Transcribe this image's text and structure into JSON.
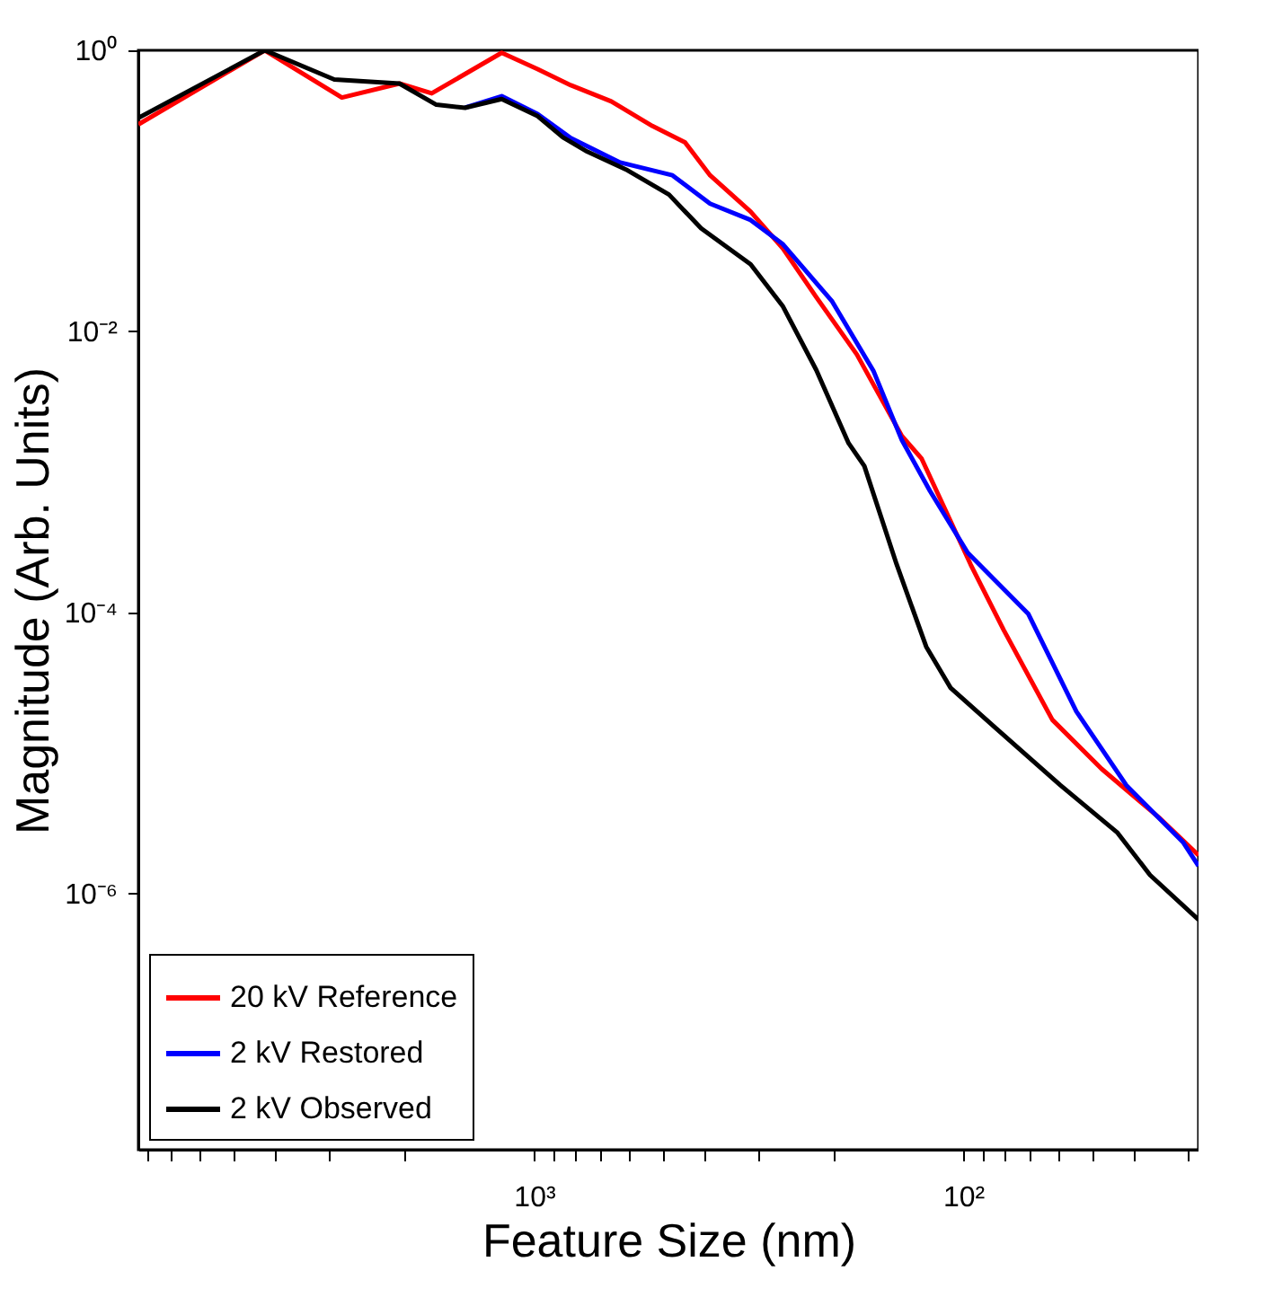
{
  "chart_data": {
    "type": "line",
    "xlabel": "Feature Size (nm)",
    "ylabel": "Magnitude (Arb. Units)",
    "log": "xy",
    "xlim": [
      8360,
      28.3
    ],
    "ylim": [
      1.5e-08,
      1
    ],
    "grid": false,
    "legend": "bottom left",
    "line_style": "solid",
    "xticks": [
      {
        "value": 8000,
        "label": null
      },
      {
        "value": 7000,
        "label": null
      },
      {
        "value": 6000,
        "label": null
      },
      {
        "value": 5000,
        "label": null
      },
      {
        "value": 4000,
        "label": null
      },
      {
        "value": 3000,
        "label": null
      },
      {
        "value": 2000,
        "label": null
      },
      {
        "value": 1000,
        "label": "10³"
      },
      {
        "value": 900,
        "label": null
      },
      {
        "value": 800,
        "label": null
      },
      {
        "value": 700,
        "label": null
      },
      {
        "value": 600,
        "label": null
      },
      {
        "value": 500,
        "label": null
      },
      {
        "value": 400,
        "label": null
      },
      {
        "value": 300,
        "label": null
      },
      {
        "value": 200,
        "label": null
      },
      {
        "value": 100,
        "label": "10²"
      },
      {
        "value": 90,
        "label": null
      },
      {
        "value": 80,
        "label": null
      },
      {
        "value": 70,
        "label": null
      },
      {
        "value": 60,
        "label": null
      },
      {
        "value": 50,
        "label": null
      },
      {
        "value": 40,
        "label": null
      },
      {
        "value": 30,
        "label": null
      }
    ],
    "yticks": [
      {
        "value": 1,
        "label": "10⁰"
      },
      {
        "value": 0.01,
        "label": "10⁻²"
      },
      {
        "value": 0.0001,
        "label": "10⁻⁴"
      },
      {
        "value": 1e-06,
        "label": "10⁻⁶"
      }
    ],
    "series": [
      {
        "name": "20 kV Reference",
        "color": "#ff0000",
        "x": [
          8360,
          4243,
          2805,
          2060,
          1732,
          1190,
          981,
          821,
          661,
          530,
          445,
          389,
          313,
          263,
          220,
          177,
          139,
          125,
          96.1,
          80.5,
          62,
          47.6,
          35,
          28.3
        ],
        "values": [
          0.297,
          1,
          0.461,
          0.58,
          0.494,
          0.96,
          0.734,
          0.564,
          0.433,
          0.289,
          0.221,
          0.129,
          0.071,
          0.0388,
          0.0175,
          0.00685,
          0.0018,
          0.00124,
          0.000219,
          7.5e-05,
          1.72e-05,
          7.7e-06,
          3.47e-06,
          1.87e-06
        ]
      },
      {
        "name": "2 kV Restored",
        "color": "#0000ff",
        "x": [
          1449,
          1190,
          981,
          821,
          630,
          476,
          389,
          313,
          263,
          202,
          162,
          139,
          119.5,
          97.6,
          70.6,
          54.5,
          41.7,
          30.7,
          28.3
        ],
        "values": [
          0.39,
          0.472,
          0.352,
          0.237,
          0.159,
          0.129,
          0.081,
          0.062,
          0.0416,
          0.0163,
          0.00525,
          0.00168,
          0.00073,
          0.000265,
          9.8e-05,
          1.97e-05,
          5.89e-06,
          2.3e-06,
          1.57e-06
        ]
      },
      {
        "name": "2 kV Observed",
        "color": "#000000",
        "x": [
          8360,
          4243,
          2922,
          2060,
          1690,
          1449,
          1190,
          981,
          857,
          752,
          606,
          485,
          408,
          313,
          263,
          220,
          185,
          170,
          143,
          122,
          107,
          84,
          59.4,
          43.7,
          36.7,
          28.3
        ],
        "values": [
          0.33,
          1,
          0.62,
          0.58,
          0.41,
          0.39,
          0.45,
          0.34,
          0.24,
          0.19,
          0.14,
          0.094,
          0.054,
          0.03,
          0.015,
          0.0053,
          0.0016,
          0.0011,
          0.00022,
          5.7e-05,
          2.9e-05,
          1.5e-05,
          5.9e-06,
          2.7e-06,
          1.35e-06,
          6.5e-07
        ]
      }
    ]
  }
}
